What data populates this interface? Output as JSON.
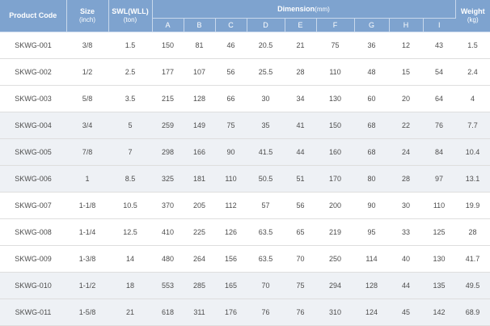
{
  "header": {
    "product_code": "Product Code",
    "size": "Size",
    "size_unit": "(inch)",
    "swl": "SWL(WLL)",
    "swl_unit": "(ton)",
    "dimension": "Dimension",
    "dimension_unit": "(mm)",
    "weight": "Weight",
    "weight_unit": "(kg)",
    "dims": [
      "A",
      "B",
      "C",
      "D",
      "E",
      "F",
      "G",
      "H",
      "I"
    ]
  },
  "rows": [
    {
      "code": "SKWG-001",
      "size": "3/8",
      "swl": "1.5",
      "dims": [
        "150",
        "81",
        "46",
        "20.5",
        "21",
        "75",
        "36",
        "12",
        "43"
      ],
      "weight": "1.5"
    },
    {
      "code": "SKWG-002",
      "size": "1/2",
      "swl": "2.5",
      "dims": [
        "177",
        "107",
        "56",
        "25.5",
        "28",
        "110",
        "48",
        "15",
        "54"
      ],
      "weight": "2.4"
    },
    {
      "code": "SKWG-003",
      "size": "5/8",
      "swl": "3.5",
      "dims": [
        "215",
        "128",
        "66",
        "30",
        "34",
        "130",
        "60",
        "20",
        "64"
      ],
      "weight": "4"
    },
    {
      "code": "SKWG-004",
      "size": "3/4",
      "swl": "5",
      "dims": [
        "259",
        "149",
        "75",
        "35",
        "41",
        "150",
        "68",
        "22",
        "76"
      ],
      "weight": "7.7"
    },
    {
      "code": "SKWG-005",
      "size": "7/8",
      "swl": "7",
      "dims": [
        "298",
        "166",
        "90",
        "41.5",
        "44",
        "160",
        "68",
        "24",
        "84"
      ],
      "weight": "10.4"
    },
    {
      "code": "SKWG-006",
      "size": "1",
      "swl": "8.5",
      "dims": [
        "325",
        "181",
        "110",
        "50.5",
        "51",
        "170",
        "80",
        "28",
        "97"
      ],
      "weight": "13.1"
    },
    {
      "code": "SKWG-007",
      "size": "1-1/8",
      "swl": "10.5",
      "dims": [
        "370",
        "205",
        "112",
        "57",
        "56",
        "200",
        "90",
        "30",
        "110"
      ],
      "weight": "19.9"
    },
    {
      "code": "SKWG-008",
      "size": "1-1/4",
      "swl": "12.5",
      "dims": [
        "410",
        "225",
        "126",
        "63.5",
        "65",
        "219",
        "95",
        "33",
        "125"
      ],
      "weight": "28"
    },
    {
      "code": "SKWG-009",
      "size": "1-3/8",
      "swl": "14",
      "dims": [
        "480",
        "264",
        "156",
        "63.5",
        "70",
        "250",
        "114",
        "40",
        "130"
      ],
      "weight": "41.7"
    },
    {
      "code": "SKWG-010",
      "size": "1-1/2",
      "swl": "18",
      "dims": [
        "553",
        "285",
        "165",
        "70",
        "75",
        "294",
        "128",
        "44",
        "135"
      ],
      "weight": "49.5"
    },
    {
      "code": "SKWG-011",
      "size": "1-5/8",
      "swl": "21",
      "dims": [
        "618",
        "311",
        "176",
        "76",
        "76",
        "310",
        "124",
        "45",
        "142"
      ],
      "weight": "68.9"
    }
  ],
  "colors": {
    "header_bg": "#7ea3cf",
    "shaded_row_bg": "#eef1f5",
    "text": "#4d4d4d"
  }
}
